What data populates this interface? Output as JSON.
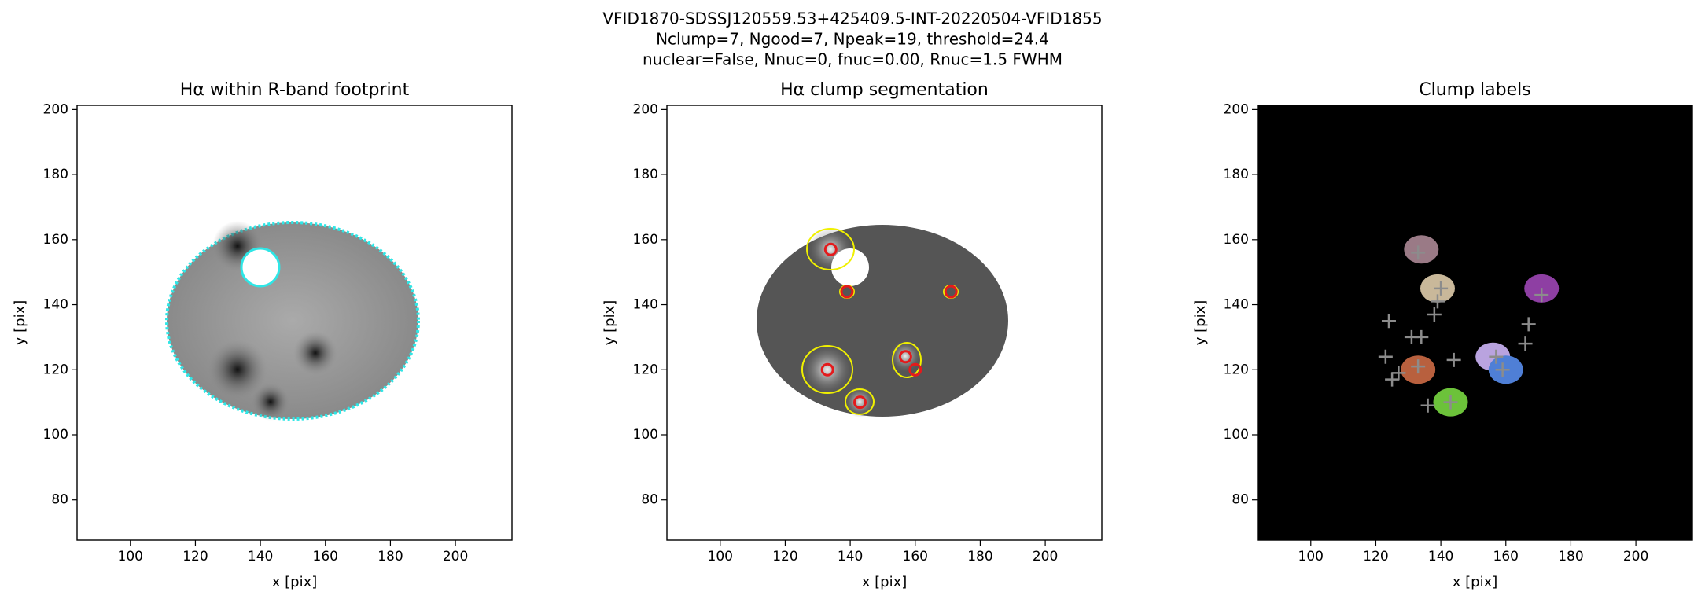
{
  "suptitle": [
    "VFID1870-SDSSJ120559.53+425409.5-INT-20220504-VFID1855",
    "Nclump=7, Ngood=7, Npeak=19, threshold=24.4",
    "nuclear=False, Nnuc=0, fnuc=0.00, Rnuc=1.5 FWHM"
  ],
  "chart_data": [
    {
      "type": "image",
      "title": "Hα within R-band footprint",
      "xlabel": "x [pix]",
      "ylabel": "y [pix]",
      "xlim": [
        83.6,
        217.4
      ],
      "ylim": [
        67.6,
        201.3
      ],
      "xticks": [
        100,
        120,
        140,
        160,
        180,
        200
      ],
      "yticks": [
        80,
        100,
        120,
        140,
        160,
        180,
        200
      ],
      "background": "#ffffff"
    },
    {
      "type": "image",
      "title": "Hα clump segmentation",
      "xlabel": "x [pix]",
      "ylabel": "y [pix]",
      "xlim": [
        83.6,
        217.4
      ],
      "ylim": [
        67.6,
        201.3
      ],
      "xticks": [
        100,
        120,
        140,
        160,
        180,
        200
      ],
      "yticks": [
        80,
        100,
        120,
        140,
        160,
        180,
        200
      ],
      "background": "#ffffff",
      "series": [
        {
          "marker": "o",
          "color": "#e41a1c",
          "x": [
            134,
            139,
            171,
            133,
            157,
            160,
            143
          ],
          "values": [
            157,
            144,
            144,
            120,
            124,
            120,
            110
          ]
        }
      ]
    },
    {
      "type": "image",
      "title": "Clump labels",
      "xlabel": "x [pix]",
      "ylabel": "y [pix]",
      "xlim": [
        83.6,
        217.4
      ],
      "ylim": [
        67.6,
        201.3
      ],
      "xticks": [
        100,
        120,
        140,
        160,
        180,
        200
      ],
      "yticks": [
        80,
        100,
        120,
        140,
        160,
        180,
        200
      ],
      "background": "#000000",
      "series": [
        {
          "marker": "blob",
          "color": "#9a7a86",
          "x": [
            134
          ],
          "values": [
            157
          ]
        },
        {
          "marker": "blob",
          "color": "#c9b89a",
          "x": [
            139
          ],
          "values": [
            145
          ]
        },
        {
          "marker": "blob",
          "color": "#b8603e",
          "x": [
            133
          ],
          "values": [
            120
          ]
        },
        {
          "marker": "blob",
          "color": "#b9a3df",
          "x": [
            156
          ],
          "values": [
            124
          ]
        },
        {
          "marker": "blob",
          "color": "#4f7fd6",
          "x": [
            160
          ],
          "values": [
            120
          ]
        },
        {
          "marker": "blob",
          "color": "#6cc23a",
          "x": [
            143
          ],
          "values": [
            110
          ]
        },
        {
          "marker": "blob",
          "color": "#8e3fa3",
          "x": [
            171
          ],
          "values": [
            145
          ]
        },
        {
          "marker": "+",
          "color": "#8c8c8c",
          "x": [
            133,
            140,
            139,
            138,
            124,
            131,
            134,
            123,
            144,
            167,
            166,
            125,
            127,
            136,
            171,
            133,
            157,
            159,
            143
          ],
          "values": [
            156,
            145,
            141,
            137,
            135,
            130,
            130,
            124,
            123,
            134,
            128,
            117,
            119,
            109,
            143,
            121,
            124,
            120,
            110
          ]
        }
      ]
    }
  ]
}
